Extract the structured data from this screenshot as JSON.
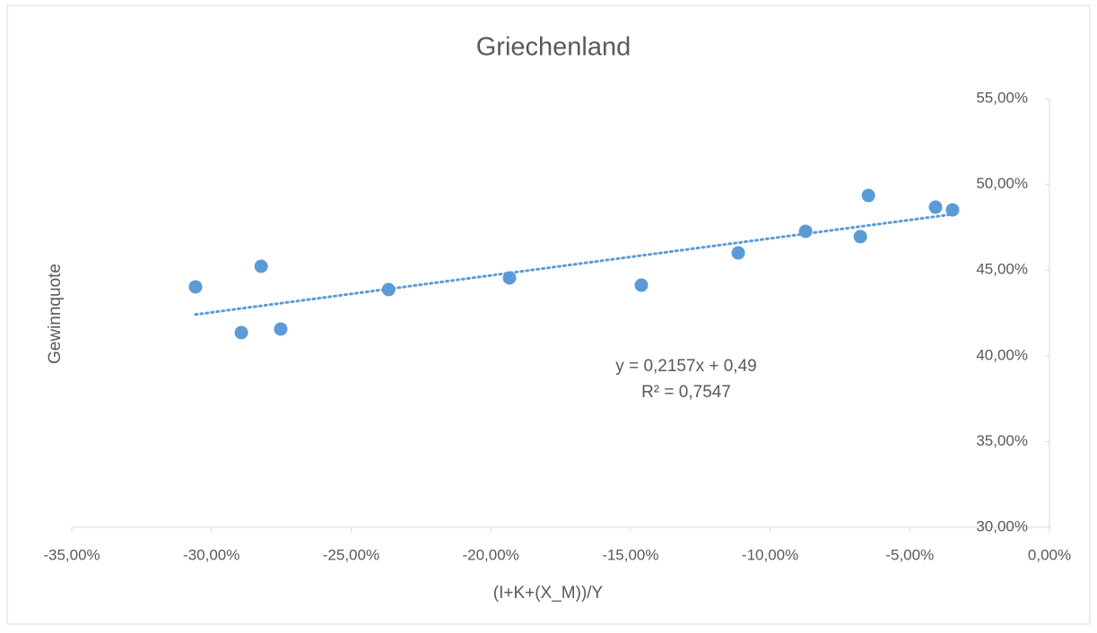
{
  "chart_data": {
    "type": "scatter",
    "title": "Griechenland",
    "x_label": "(I+K+(X_M))/Y",
    "y_label": "Gewinnquote",
    "series": [
      {
        "name": "Gewinnquote",
        "color": "#5b9bd5",
        "x": [
          -0.3057,
          -0.2893,
          -0.2822,
          -0.2752,
          -0.2366,
          -0.1933,
          -0.1461,
          -0.1114,
          -0.0873,
          -0.0677,
          -0.0648,
          -0.0408,
          -0.0347
        ],
        "values": [
          0.4402,
          0.4135,
          0.4522,
          0.4156,
          0.4386,
          0.4454,
          0.4412,
          0.46,
          0.4726,
          0.4695,
          0.4935,
          0.4867,
          0.4851
        ]
      }
    ],
    "trendline": {
      "slope": 0.2157,
      "intercept": 0.49,
      "equation": "y = 0,2157x + 0,49",
      "r2": "R² = 0,7547"
    },
    "xlim": [
      -0.35,
      0
    ],
    "ylim": [
      0.3,
      0.55
    ],
    "xticks": [
      {
        "value": -0.35,
        "label": "-35,00%"
      },
      {
        "value": -0.3,
        "label": "-30,00%"
      },
      {
        "value": -0.25,
        "label": "-25,00%"
      },
      {
        "value": -0.2,
        "label": "-20,00%"
      },
      {
        "value": -0.15,
        "label": "-15,00%"
      },
      {
        "value": -0.1,
        "label": "-10,00%"
      },
      {
        "value": -0.05,
        "label": "-5,00%"
      },
      {
        "value": 0,
        "label": "0,00%"
      }
    ],
    "yticks": [
      {
        "value": 0.3,
        "label": "30,00%"
      },
      {
        "value": 0.35,
        "label": "35,00%"
      },
      {
        "value": 0.4,
        "label": "40,00%"
      },
      {
        "value": 0.45,
        "label": "45,00%"
      },
      {
        "value": 0.5,
        "label": "50,00%"
      },
      {
        "value": 0.55,
        "label": "55,00%"
      }
    ]
  }
}
